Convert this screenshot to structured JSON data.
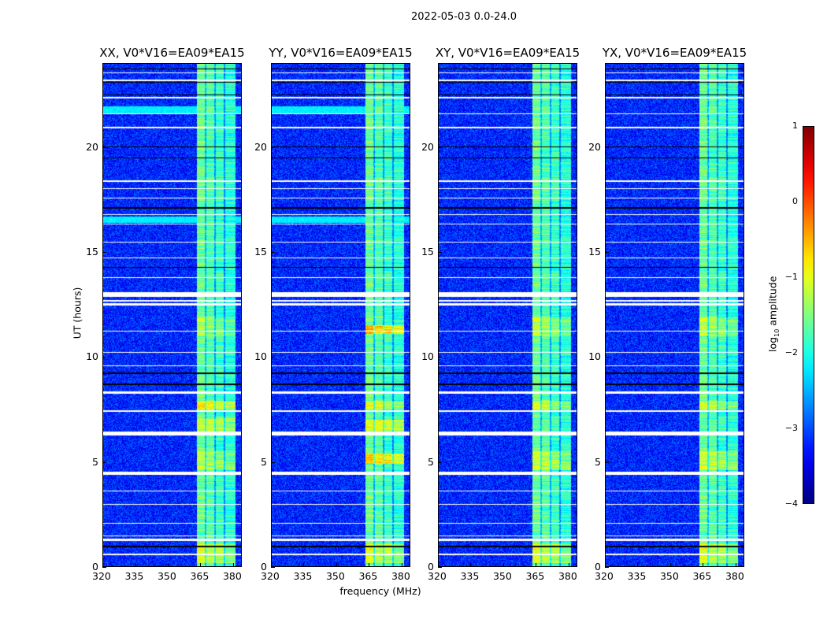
{
  "chart_data": {
    "type": "heatmap",
    "title": "2022-05-03 0.0-24.0",
    "xlabel": "frequency (MHz)",
    "ylabel": "UT (hours)",
    "xlim": [
      320,
      384
    ],
    "ylim": [
      0,
      24
    ],
    "xticks": [
      320,
      335,
      350,
      365,
      380
    ],
    "yticks": [
      0,
      5,
      10,
      15,
      20
    ],
    "panels": [
      {
        "title": "XX, V0*V16=EA09*EA15",
        "strong_rows": [
          [
            4.6,
            5.5,
            -1.2
          ],
          [
            6.3,
            7.1,
            -1.1
          ],
          [
            7.5,
            7.9,
            -0.8
          ],
          [
            0.2,
            1.1,
            -1.1
          ],
          [
            11.0,
            11.9,
            -1.3
          ]
        ]
      },
      {
        "title": "YY, V0*V16=EA09*EA15",
        "strong_rows": [
          [
            4.9,
            5.4,
            -0.6
          ],
          [
            6.5,
            7.0,
            -0.9
          ],
          [
            7.5,
            7.9,
            -1.0
          ],
          [
            11.1,
            11.5,
            -0.5
          ],
          [
            0.2,
            1.1,
            -1.1
          ]
        ]
      },
      {
        "title": "XY, V0*V16=EA09*EA15",
        "strong_rows": [
          [
            4.6,
            5.5,
            -1.1
          ],
          [
            7.5,
            7.9,
            -1.1
          ],
          [
            11.0,
            11.9,
            -1.2
          ],
          [
            0.2,
            1.1,
            -1.1
          ]
        ]
      },
      {
        "title": "YX, V0*V16=EA09*EA15",
        "strong_rows": [
          [
            4.6,
            5.5,
            -1.1
          ],
          [
            7.5,
            7.9,
            -1.1
          ],
          [
            11.0,
            11.9,
            -1.2
          ],
          [
            0.2,
            1.1,
            -1.1
          ]
        ]
      }
    ],
    "background_log10": -3.2,
    "band_mhz": [
      363.5,
      381
    ],
    "band_gaps_mhz": [
      367.5,
      371.8,
      376.0
    ],
    "band_log10": -1.6,
    "flagged_white_hours": [
      [
        0.55,
        0.62
      ],
      [
        1.25,
        1.35
      ],
      [
        1.45,
        1.5
      ],
      [
        2.05,
        2.1
      ],
      [
        2.95,
        3.0
      ],
      [
        3.6,
        3.65
      ],
      [
        4.4,
        4.55
      ],
      [
        6.25,
        6.45
      ],
      [
        7.4,
        7.45
      ],
      [
        8.25,
        8.35
      ],
      [
        9.55,
        9.6
      ],
      [
        10.2,
        10.25
      ],
      [
        11.2,
        11.25
      ],
      [
        12.45,
        12.55
      ],
      [
        12.65,
        12.7
      ],
      [
        12.85,
        13.1
      ],
      [
        13.75,
        13.8
      ],
      [
        14.7,
        14.75
      ],
      [
        15.45,
        15.5
      ],
      [
        16.3,
        16.35
      ],
      [
        16.75,
        16.8
      ],
      [
        17.55,
        17.6
      ],
      [
        18.0,
        18.05
      ],
      [
        18.35,
        18.4
      ],
      [
        20.9,
        20.95
      ],
      [
        21.55,
        21.6
      ],
      [
        22.3,
        22.4
      ],
      [
        23.15,
        23.2
      ],
      [
        23.5,
        23.55
      ]
    ],
    "flagged_black_hours": [
      [
        0.95,
        1.0
      ],
      [
        8.65,
        8.72
      ],
      [
        9.2,
        9.25
      ],
      [
        14.25,
        14.3
      ],
      [
        17.05,
        17.12
      ],
      [
        19.45,
        19.5
      ],
      [
        19.98,
        20.02
      ],
      [
        22.45,
        22.5
      ],
      [
        23.05,
        23.1
      ],
      [
        23.7,
        23.75
      ]
    ],
    "colorbar": {
      "label": "log10 amplitude",
      "range": [
        -4,
        1
      ],
      "ticks": [
        1,
        0,
        -1,
        -2,
        -3,
        -4
      ],
      "colormap": "jet"
    }
  }
}
